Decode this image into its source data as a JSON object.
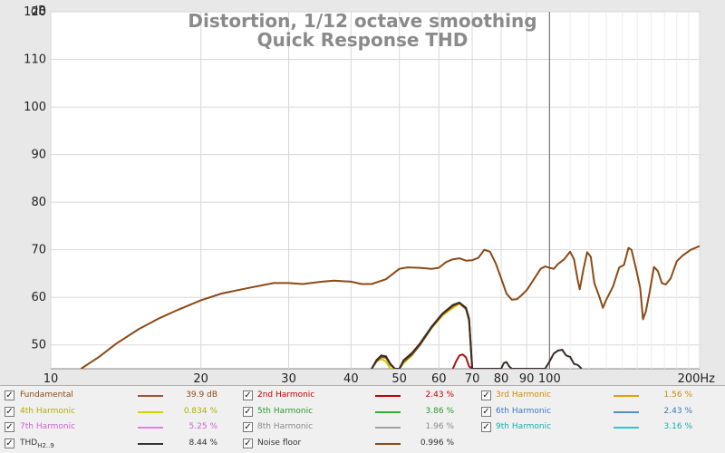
{
  "chart_data": {
    "type": "line",
    "title": "Distortion, 1/12 octave smoothing",
    "subtitle": "Quick Response THD",
    "ylabel": "dB",
    "xunit": "Hz",
    "xscale": "log",
    "xlim": [
      10,
      200
    ],
    "ylim": [
      45,
      120
    ],
    "grid": true,
    "marker_x": 100,
    "y_ticks": [
      "120",
      "110",
      "100",
      "90",
      "80",
      "70",
      "60",
      "50"
    ],
    "x_ticks": [
      "10",
      "20",
      "30",
      "40",
      "50",
      "60",
      "70",
      "80",
      "90",
      "100",
      "200Hz"
    ],
    "series": [
      {
        "name": "Fundamental",
        "color": "#8b4a16",
        "points": [
          [
            11.5,
            45
          ],
          [
            12.5,
            47.5
          ],
          [
            13.5,
            50.2
          ],
          [
            15,
            53.3
          ],
          [
            16.5,
            55.6
          ],
          [
            18,
            57.4
          ],
          [
            20,
            59.4
          ],
          [
            22,
            60.8
          ],
          [
            25,
            62
          ],
          [
            28,
            63
          ],
          [
            30,
            63
          ],
          [
            32,
            62.8
          ],
          [
            35,
            63.3
          ],
          [
            37,
            63.5
          ],
          [
            40,
            63.3
          ],
          [
            42,
            62.8
          ],
          [
            44,
            62.8
          ],
          [
            47,
            63.8
          ],
          [
            50,
            66
          ],
          [
            52,
            66.3
          ],
          [
            55,
            66.2
          ],
          [
            58,
            66
          ],
          [
            60,
            66.2
          ],
          [
            62,
            67.4
          ],
          [
            64,
            68
          ],
          [
            66,
            68.2
          ],
          [
            68,
            67.7
          ],
          [
            70,
            67.8
          ],
          [
            72,
            68.3
          ],
          [
            74,
            70
          ],
          [
            76,
            69.6
          ],
          [
            78,
            67.2
          ],
          [
            80,
            64
          ],
          [
            82,
            60.8
          ],
          [
            84,
            59.5
          ],
          [
            86,
            59.6
          ],
          [
            88,
            60.5
          ],
          [
            90,
            61.5
          ],
          [
            92,
            63
          ],
          [
            94,
            64.5
          ],
          [
            96,
            66
          ],
          [
            98,
            66.5
          ],
          [
            100,
            66.2
          ],
          [
            102,
            66
          ],
          [
            104,
            67
          ],
          [
            107,
            68
          ],
          [
            110,
            69.6
          ],
          [
            112,
            68
          ],
          [
            114,
            63.5
          ],
          [
            115,
            61.7
          ],
          [
            117,
            66
          ],
          [
            119,
            69.5
          ],
          [
            121,
            68.5
          ],
          [
            123,
            63
          ],
          [
            126,
            60
          ],
          [
            128,
            57.8
          ],
          [
            130,
            59.5
          ],
          [
            134,
            62.2
          ],
          [
            138,
            66.3
          ],
          [
            141,
            66.8
          ],
          [
            144,
            70.4
          ],
          [
            146,
            70
          ],
          [
            149,
            66.2
          ],
          [
            152,
            62
          ],
          [
            154,
            55.4
          ],
          [
            156,
            57
          ],
          [
            159,
            61.5
          ],
          [
            162,
            66.4
          ],
          [
            165,
            65.5
          ],
          [
            168,
            63
          ],
          [
            171,
            62.7
          ],
          [
            175,
            64
          ],
          [
            180,
            67.6
          ],
          [
            185,
            68.8
          ],
          [
            192,
            70
          ],
          [
            200,
            70.8
          ]
        ]
      },
      {
        "name": "4th Harmonic",
        "color": "#cccc00",
        "points": [
          [
            44,
            45
          ],
          [
            45,
            46.5
          ],
          [
            46,
            47.1
          ],
          [
            47,
            46.5
          ],
          [
            48,
            45
          ],
          [
            50,
            45
          ],
          [
            51,
            46.2
          ],
          [
            53,
            47.8
          ],
          [
            55,
            50
          ],
          [
            58,
            53.5
          ],
          [
            61,
            56.2
          ],
          [
            64,
            57.8
          ],
          [
            66,
            58.7
          ],
          [
            68,
            57.5
          ],
          [
            69,
            55
          ],
          [
            70,
            45
          ]
        ]
      },
      {
        "name": "2nd Harmonic",
        "color": "#b01010",
        "points": [
          [
            64,
            45
          ],
          [
            65,
            46.6
          ],
          [
            66,
            47.8
          ],
          [
            67,
            48
          ],
          [
            68,
            47.4
          ],
          [
            69,
            45.5
          ],
          [
            70,
            45
          ]
        ]
      },
      {
        "name": "THD H2..9",
        "color": "#3a2a2a",
        "points": [
          [
            44,
            45
          ],
          [
            45,
            46.8
          ],
          [
            46,
            47.8
          ],
          [
            47,
            47.6
          ],
          [
            48,
            46
          ],
          [
            49,
            45
          ],
          [
            50,
            45
          ],
          [
            51,
            46.8
          ],
          [
            53,
            48.3
          ],
          [
            55,
            50.3
          ],
          [
            58,
            53.8
          ],
          [
            61,
            56.6
          ],
          [
            64,
            58.4
          ],
          [
            66,
            58.9
          ],
          [
            68,
            57.8
          ],
          [
            69,
            55.5
          ],
          [
            70,
            45
          ],
          [
            80,
            45
          ],
          [
            81,
            46.2
          ],
          [
            82,
            46.4
          ],
          [
            83,
            45.5
          ],
          [
            84,
            45
          ],
          [
            98,
            45
          ],
          [
            100,
            46.5
          ],
          [
            102,
            48.2
          ],
          [
            104,
            48.8
          ],
          [
            106,
            49
          ],
          [
            108,
            47.8
          ],
          [
            110,
            47.5
          ],
          [
            112,
            46
          ],
          [
            114,
            45.8
          ],
          [
            116,
            45
          ]
        ]
      },
      {
        "name": "Noise floor",
        "color": "#8b4a16",
        "points": [
          [
            44,
            45
          ],
          [
            45,
            46.6
          ],
          [
            46,
            47.5
          ],
          [
            47,
            47.3
          ],
          [
            48,
            45.8
          ],
          [
            49,
            45
          ],
          [
            50,
            45
          ],
          [
            51,
            46.5
          ],
          [
            53,
            48
          ],
          [
            55,
            50
          ],
          [
            58,
            53.6
          ],
          [
            61,
            56.4
          ],
          [
            64,
            58.2
          ],
          [
            66,
            58.8
          ],
          [
            68,
            57.6
          ],
          [
            69,
            55.2
          ],
          [
            70,
            45
          ]
        ]
      }
    ]
  },
  "legend": {
    "rows": [
      [
        {
          "label": "Fundamental",
          "value": "39.9 dB",
          "color": "#a0522d",
          "text_color": "#8b4a16"
        },
        {
          "label": "2nd Harmonic",
          "value": "2.43 %",
          "color": "#c00000",
          "text_color": "#c00000"
        },
        {
          "label": "3rd Harmonic",
          "value": "1.56 %",
          "color": "#e0a000",
          "text_color": "#d08a00"
        }
      ],
      [
        {
          "label": "4th Harmonic",
          "value": "0.834 %",
          "color": "#d4d400",
          "text_color": "#b0b000"
        },
        {
          "label": "5th Harmonic",
          "value": "3.86 %",
          "color": "#30b030",
          "text_color": "#2a9a2a"
        },
        {
          "label": "6th Harmonic",
          "value": "2.43 %",
          "color": "#5090d0",
          "text_color": "#3a78c0"
        }
      ],
      [
        {
          "label": "7th Harmonic",
          "value": "5.25 %",
          "color": "#e080e0",
          "text_color": "#d060d0"
        },
        {
          "label": "8th Harmonic",
          "value": "1.96 %",
          "color": "#a0a0a0",
          "text_color": "#8a8a8a"
        },
        {
          "label": "9th Harmonic",
          "value": "3.16 %",
          "color": "#20d0d0",
          "text_color": "#10b0b0"
        }
      ],
      [
        {
          "label": "THD",
          "label_sub": "H2..9",
          "value": "8.44 %",
          "color": "#333333",
          "text_color": "#333333"
        },
        {
          "label": "Noise floor",
          "value": "0.996 %",
          "color": "#8b4a16",
          "text_color": "#333333"
        }
      ]
    ],
    "check_glyph": "✓"
  }
}
